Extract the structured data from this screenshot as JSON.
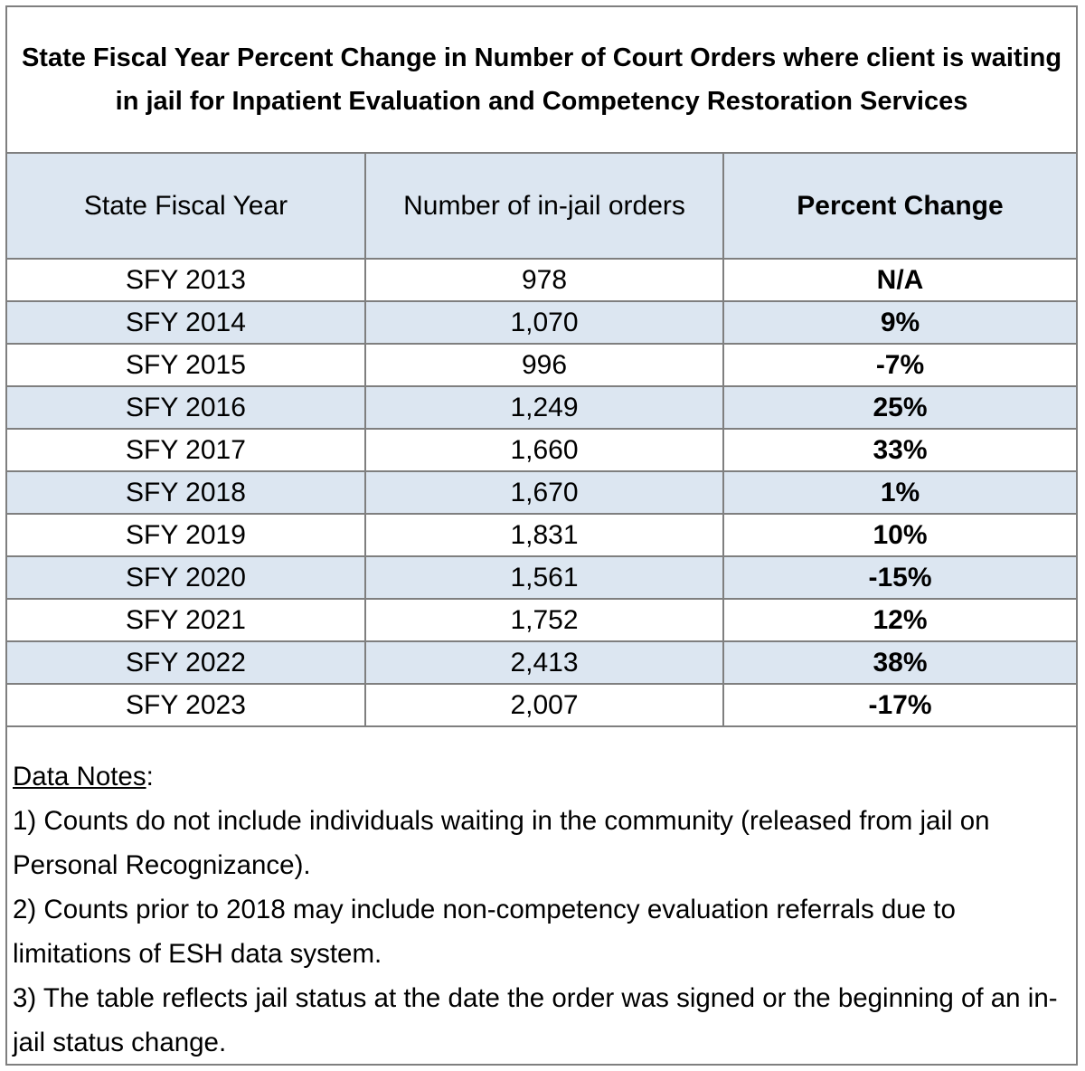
{
  "title": "State Fiscal Year Percent Change in Number of Court Orders where client is waiting in jail for Inpatient Evaluation and Competency Restoration Services",
  "columns": [
    "State Fiscal Year",
    "Number of in-jail orders",
    "Percent Change"
  ],
  "rows": [
    {
      "year": "SFY 2013",
      "orders": "978",
      "change": "N/A"
    },
    {
      "year": "SFY 2014",
      "orders": "1,070",
      "change": "9%"
    },
    {
      "year": "SFY 2015",
      "orders": "996",
      "change": "-7%"
    },
    {
      "year": "SFY 2016",
      "orders": "1,249",
      "change": "25%"
    },
    {
      "year": "SFY 2017",
      "orders": "1,660",
      "change": "33%"
    },
    {
      "year": "SFY 2018",
      "orders": "1,670",
      "change": "1%"
    },
    {
      "year": "SFY 2019",
      "orders": "1,831",
      "change": "10%"
    },
    {
      "year": "SFY 2020",
      "orders": "1,561",
      "change": "-15%"
    },
    {
      "year": "SFY 2021",
      "orders": "1,752",
      "change": "12%"
    },
    {
      "year": "SFY 2022",
      "orders": "2,413",
      "change": "38%"
    },
    {
      "year": "SFY 2023",
      "orders": "2,007",
      "change": "-17%"
    }
  ],
  "notes": {
    "heading": "Data Notes",
    "heading_suffix": ":",
    "items": [
      "1) Counts do not include individuals waiting in the community (released from jail on Personal Recognizance).",
      "2) Counts prior to 2018 may include non-competency evaluation referrals due to limitations of ESH data system.",
      "3) The table reflects jail status at the date the order was signed or the beginning of an in-jail status change."
    ]
  },
  "colors": {
    "shade": "#dce6f1",
    "border": "#7f7f7f"
  }
}
